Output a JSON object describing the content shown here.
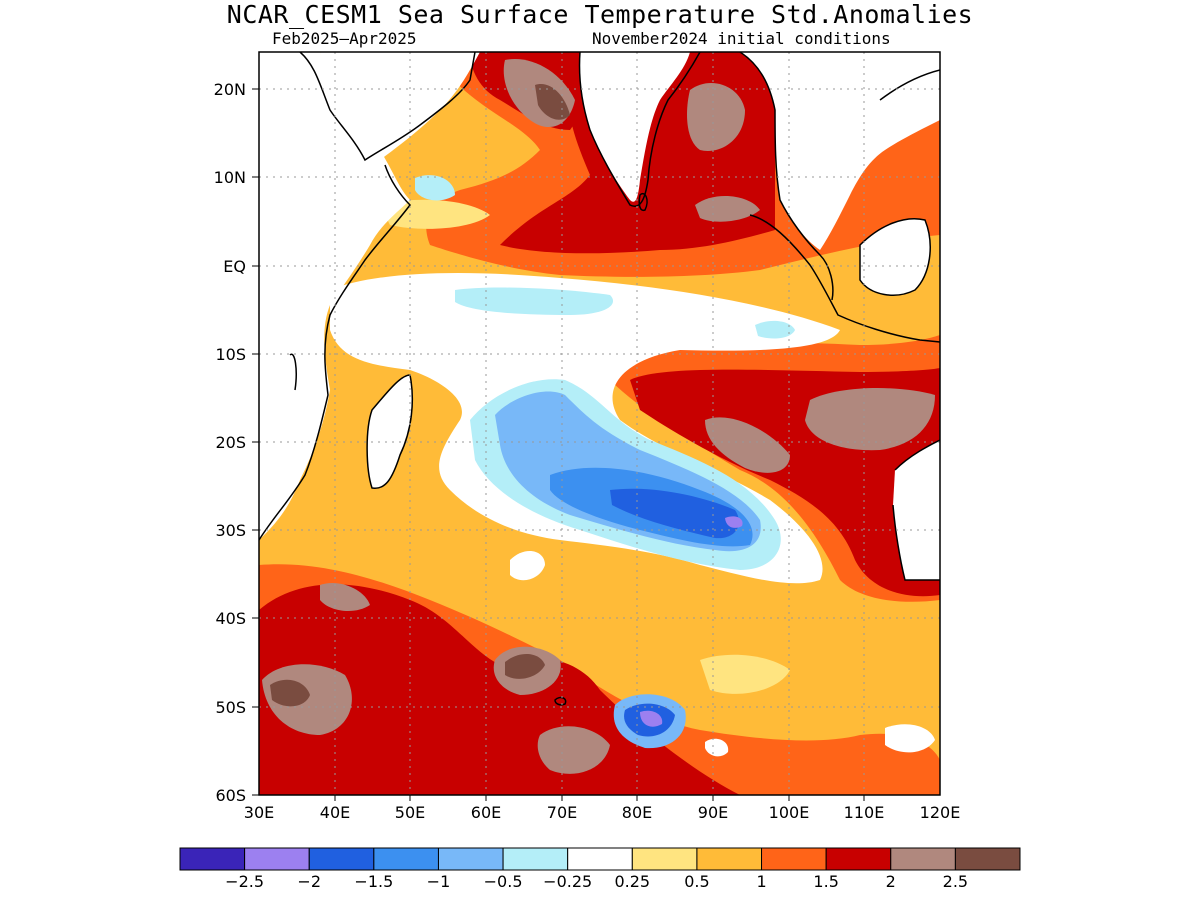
{
  "header": {
    "title": "NCAR_CESM1 Sea Surface Temperature Std.Anomalies",
    "period": "Feb2025–Apr2025",
    "initial_conditions": "November2024 initial conditions"
  },
  "map": {
    "lon_range": [
      30,
      120
    ],
    "lat_range": [
      -60,
      24
    ],
    "lat_ticks": [
      {
        "value": 20,
        "label": "20N"
      },
      {
        "value": 10,
        "label": "10N"
      },
      {
        "value": 0,
        "label": "EQ"
      },
      {
        "value": -10,
        "label": "10S"
      },
      {
        "value": -20,
        "label": "20S"
      },
      {
        "value": -30,
        "label": "30S"
      },
      {
        "value": -40,
        "label": "40S"
      },
      {
        "value": -50,
        "label": "50S"
      },
      {
        "value": -60,
        "label": "60S"
      }
    ],
    "lon_ticks": [
      {
        "value": 30,
        "label": "30E"
      },
      {
        "value": 40,
        "label": "40E"
      },
      {
        "value": 50,
        "label": "50E"
      },
      {
        "value": 60,
        "label": "60E"
      },
      {
        "value": 70,
        "label": "70E"
      },
      {
        "value": 80,
        "label": "80E"
      },
      {
        "value": 90,
        "label": "90E"
      },
      {
        "value": 100,
        "label": "100E"
      },
      {
        "value": 110,
        "label": "110E"
      },
      {
        "value": 120,
        "label": "120E"
      }
    ],
    "gridlines": "dotted"
  },
  "colorbar": {
    "colors": [
      "#3a24b8",
      "#9c80f0",
      "#2060e0",
      "#3c90f0",
      "#78b8f8",
      "#b4eef8",
      "#ffffff",
      "#ffe480",
      "#ffbb38",
      "#ff6418",
      "#c80000",
      "#b0887e",
      "#7a4c40"
    ],
    "labels": [
      "−2.5",
      "−2",
      "−1.5",
      "−1",
      "−0.5",
      "−0.25",
      "0.25",
      "0.5",
      "1",
      "1.5",
      "2",
      "2.5"
    ]
  }
}
